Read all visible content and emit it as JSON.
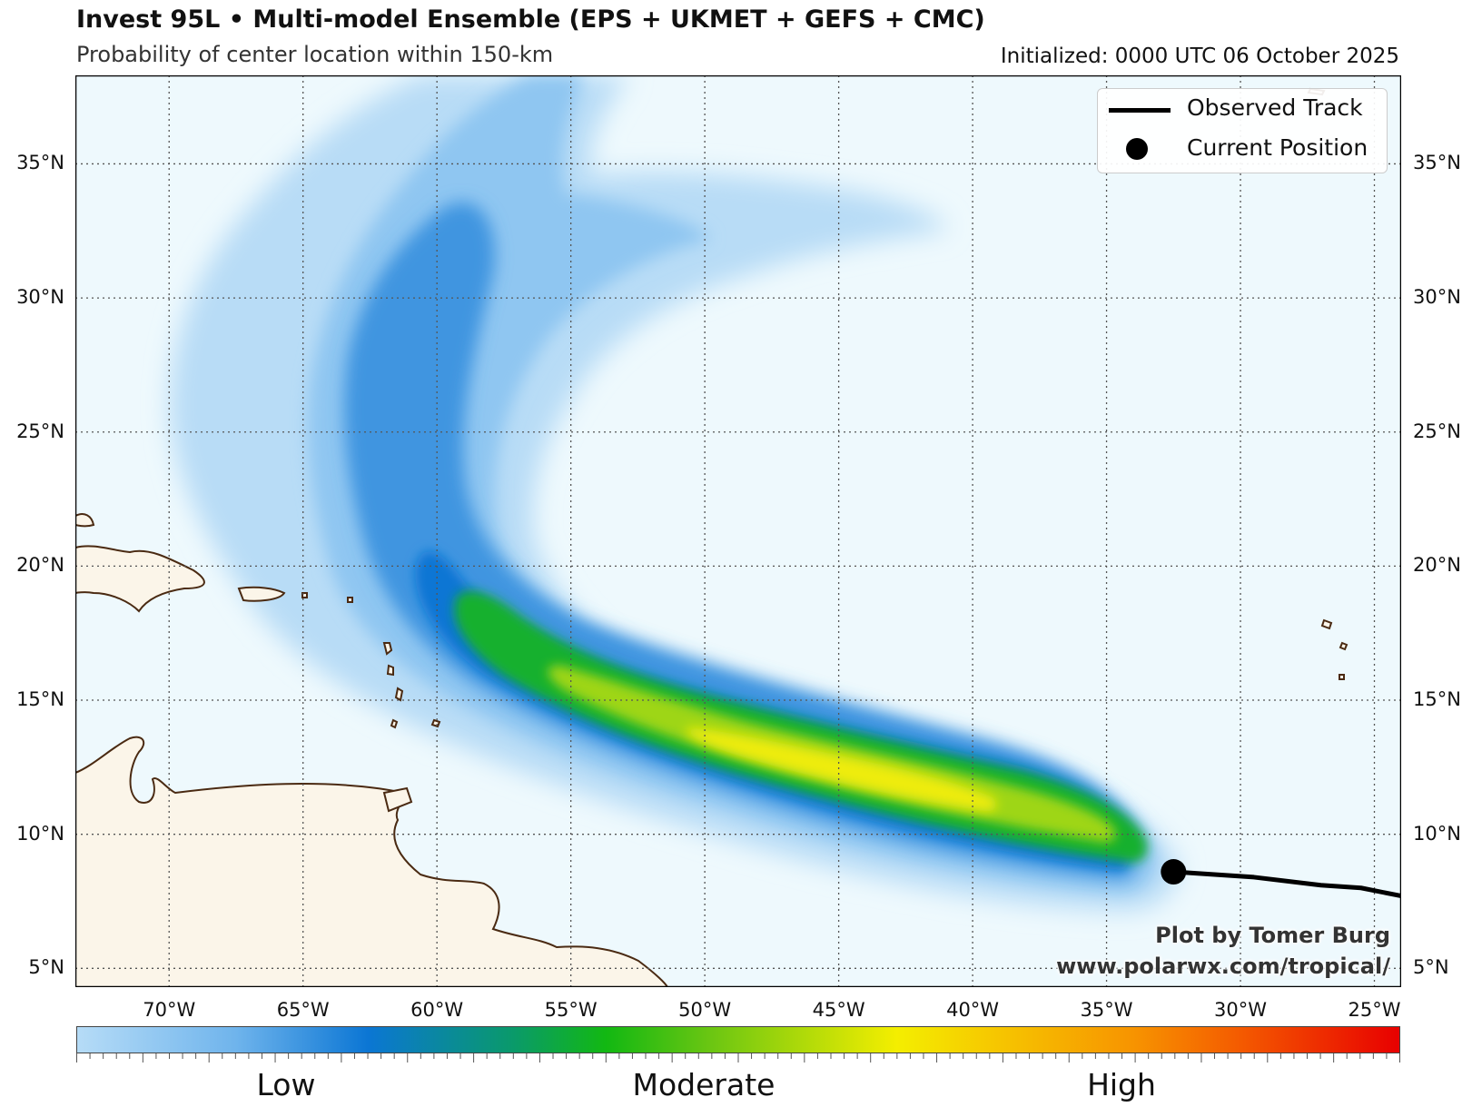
{
  "header": {
    "title": "Invest 95L • Multi-model Ensemble (EPS + UKMET + GEFS + CMC)",
    "subtitle": "Probability of center location within 150-km",
    "initialized": "Initialized: 0000 UTC 06 October 2025"
  },
  "map": {
    "lon_range": [
      -73.5,
      -24.0
    ],
    "lat_range": [
      4.3,
      38.3
    ],
    "lat_ticks": [
      {
        "value": 35,
        "label": "35°N"
      },
      {
        "value": 30,
        "label": "30°N"
      },
      {
        "value": 25,
        "label": "25°N"
      },
      {
        "value": 20,
        "label": "20°N"
      },
      {
        "value": 15,
        "label": "15°N"
      },
      {
        "value": 10,
        "label": "10°N"
      },
      {
        "value": 5,
        "label": "5°N"
      }
    ],
    "lon_ticks": [
      {
        "value": -70,
        "label": "70°W"
      },
      {
        "value": -65,
        "label": "65°W"
      },
      {
        "value": -60,
        "label": "60°W"
      },
      {
        "value": -55,
        "label": "55°W"
      },
      {
        "value": -50,
        "label": "50°W"
      },
      {
        "value": -45,
        "label": "45°W"
      },
      {
        "value": -40,
        "label": "40°W"
      },
      {
        "value": -35,
        "label": "35°W"
      },
      {
        "value": -30,
        "label": "30°W"
      },
      {
        "value": -25,
        "label": "25°W"
      }
    ],
    "colors": {
      "ocean": "#eef9fd",
      "land": "#fbf5e9",
      "coastline": "#4a2a12",
      "grid": "#555555",
      "low": "#b6dcf7",
      "mid_blue": "#0b76d4",
      "green": "#12b812",
      "yellow": "#f4ee00",
      "high": "#e80000"
    },
    "observed_track": [
      [
        -32.5,
        8.6
      ],
      [
        -29.5,
        8.4
      ],
      [
        -27.0,
        8.1
      ],
      [
        -25.5,
        8.0
      ],
      [
        -24.0,
        7.7
      ]
    ],
    "current_position": [
      -32.5,
      8.6
    ]
  },
  "legend": {
    "observed_track_label": "Observed Track",
    "current_position_label": "Current Position"
  },
  "colorbar": {
    "low_label": "Low",
    "moderate_label": "Moderate",
    "high_label": "High"
  },
  "credit": {
    "line1": "Plot by Tomer Burg",
    "line2": "www.polarwx.com/tropical/"
  }
}
